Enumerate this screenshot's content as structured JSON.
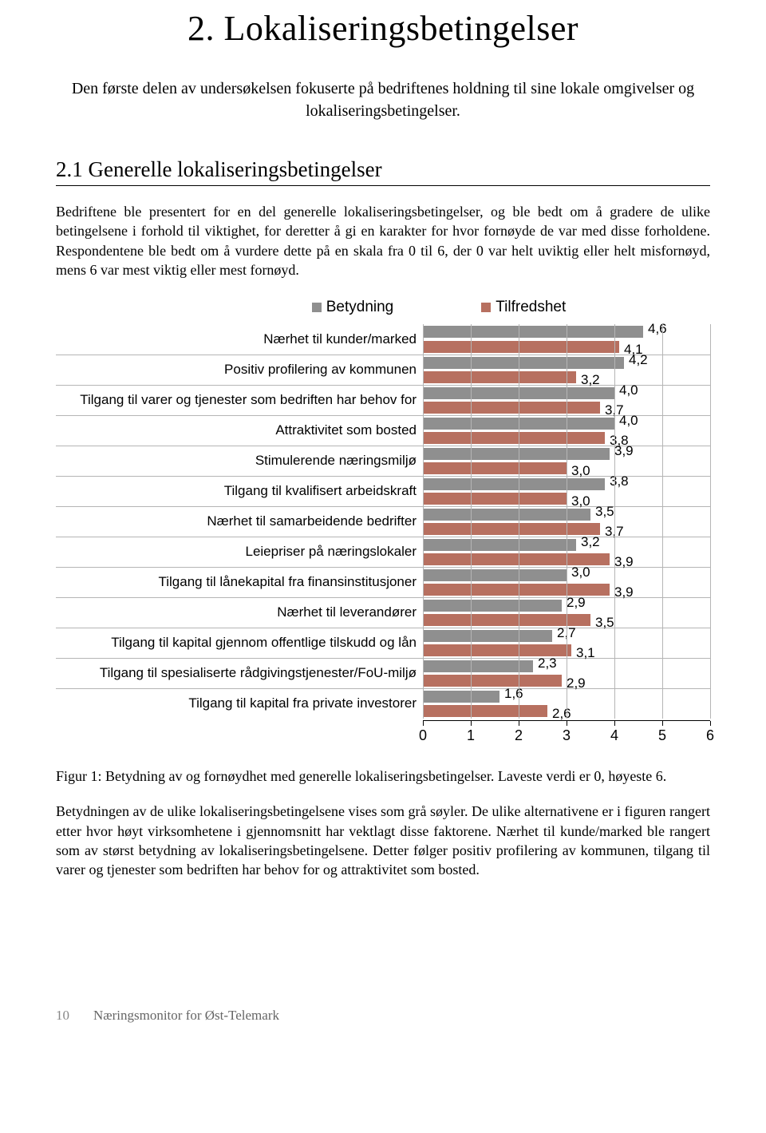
{
  "heading": "2. Lokaliseringsbetingelser",
  "intro": "Den første delen av undersøkelsen fokuserte på bedriftenes holdning til sine lokale omgivelser og lokaliseringsbetingelser.",
  "subheading": "2.1 Generelle lokaliseringsbetingelser",
  "para1": "Bedriftene ble presentert for en del generelle lokaliseringsbetingelser, og ble bedt om å gradere de ulike betingelsene i forhold til viktighet, for deretter å gi en karakter for hvor fornøyde de var med disse forholdene. Respondentene ble bedt om å vurdere dette på en skala fra 0 til 6, der 0 var helt uviktig eller helt misfornøyd, mens 6 var mest viktig eller mest fornøyd.",
  "chart": {
    "type": "bar-horizontal-grouped",
    "x_min": 0,
    "x_max": 6,
    "tick_step": 1,
    "series": [
      {
        "name": "Betydning",
        "color": "#8f8f8f"
      },
      {
        "name": "Tilfredshet",
        "color": "#b77060"
      }
    ],
    "grid_color": "#b5b5b5",
    "label_fontsize": 17,
    "value_fontsize": 17,
    "rows": [
      {
        "label": "Nærhet til kunder/marked",
        "betydning": 4.6,
        "tilfredshet": 4.1
      },
      {
        "label": "Positiv profilering av kommunen",
        "betydning": 4.2,
        "tilfredshet": 3.2
      },
      {
        "label": "Tilgang til varer og tjenester som bedriften har behov for",
        "betydning": 4.0,
        "tilfredshet": 3.7
      },
      {
        "label": "Attraktivitet som bosted",
        "betydning": 4.0,
        "tilfredshet": 3.8
      },
      {
        "label": "Stimulerende næringsmiljø",
        "betydning": 3.9,
        "tilfredshet": 3.0
      },
      {
        "label": "Tilgang til kvalifisert arbeidskraft",
        "betydning": 3.8,
        "tilfredshet": 3.0
      },
      {
        "label": "Nærhet til samarbeidende bedrifter",
        "betydning": 3.5,
        "tilfredshet": 3.7
      },
      {
        "label": "Leiepriser på næringslokaler",
        "betydning": 3.2,
        "tilfredshet": 3.9
      },
      {
        "label": "Tilgang til lånekapital fra finansinstitusjoner",
        "betydning": 3.0,
        "tilfredshet": 3.9
      },
      {
        "label": "Nærhet til leverandører",
        "betydning": 2.9,
        "tilfredshet": 3.5
      },
      {
        "label": "Tilgang til kapital gjennom offentlige tilskudd og lån",
        "betydning": 2.7,
        "tilfredshet": 3.1
      },
      {
        "label": "Tilgang til spesialiserte rådgivingstjenester/FoU-miljø",
        "betydning": 2.3,
        "tilfredshet": 2.9
      },
      {
        "label": "Tilgang til kapital fra private investorer",
        "betydning": 1.6,
        "tilfredshet": 2.6
      }
    ]
  },
  "figure_caption": "Figur 1: Betydning av og fornøydhet med generelle lokaliseringsbetingelser. Laveste verdi er 0, høyeste 6.",
  "para2": "Betydningen av de ulike lokaliseringsbetingelsene vises som grå søyler. De ulike alternativene er i figuren rangert etter hvor høyt virksomhetene i gjennomsnitt har vektlagt disse faktorene. Nærhet til kunde/marked ble rangert som av størst betydning av lokaliseringsbetingelsene. Detter følger positiv profilering av kommunen, tilgang til varer og tjenester som bedriften har behov for og attraktivitet som bosted.",
  "footer_page": "10",
  "footer_text": "Næringsmonitor for Øst-Telemark"
}
